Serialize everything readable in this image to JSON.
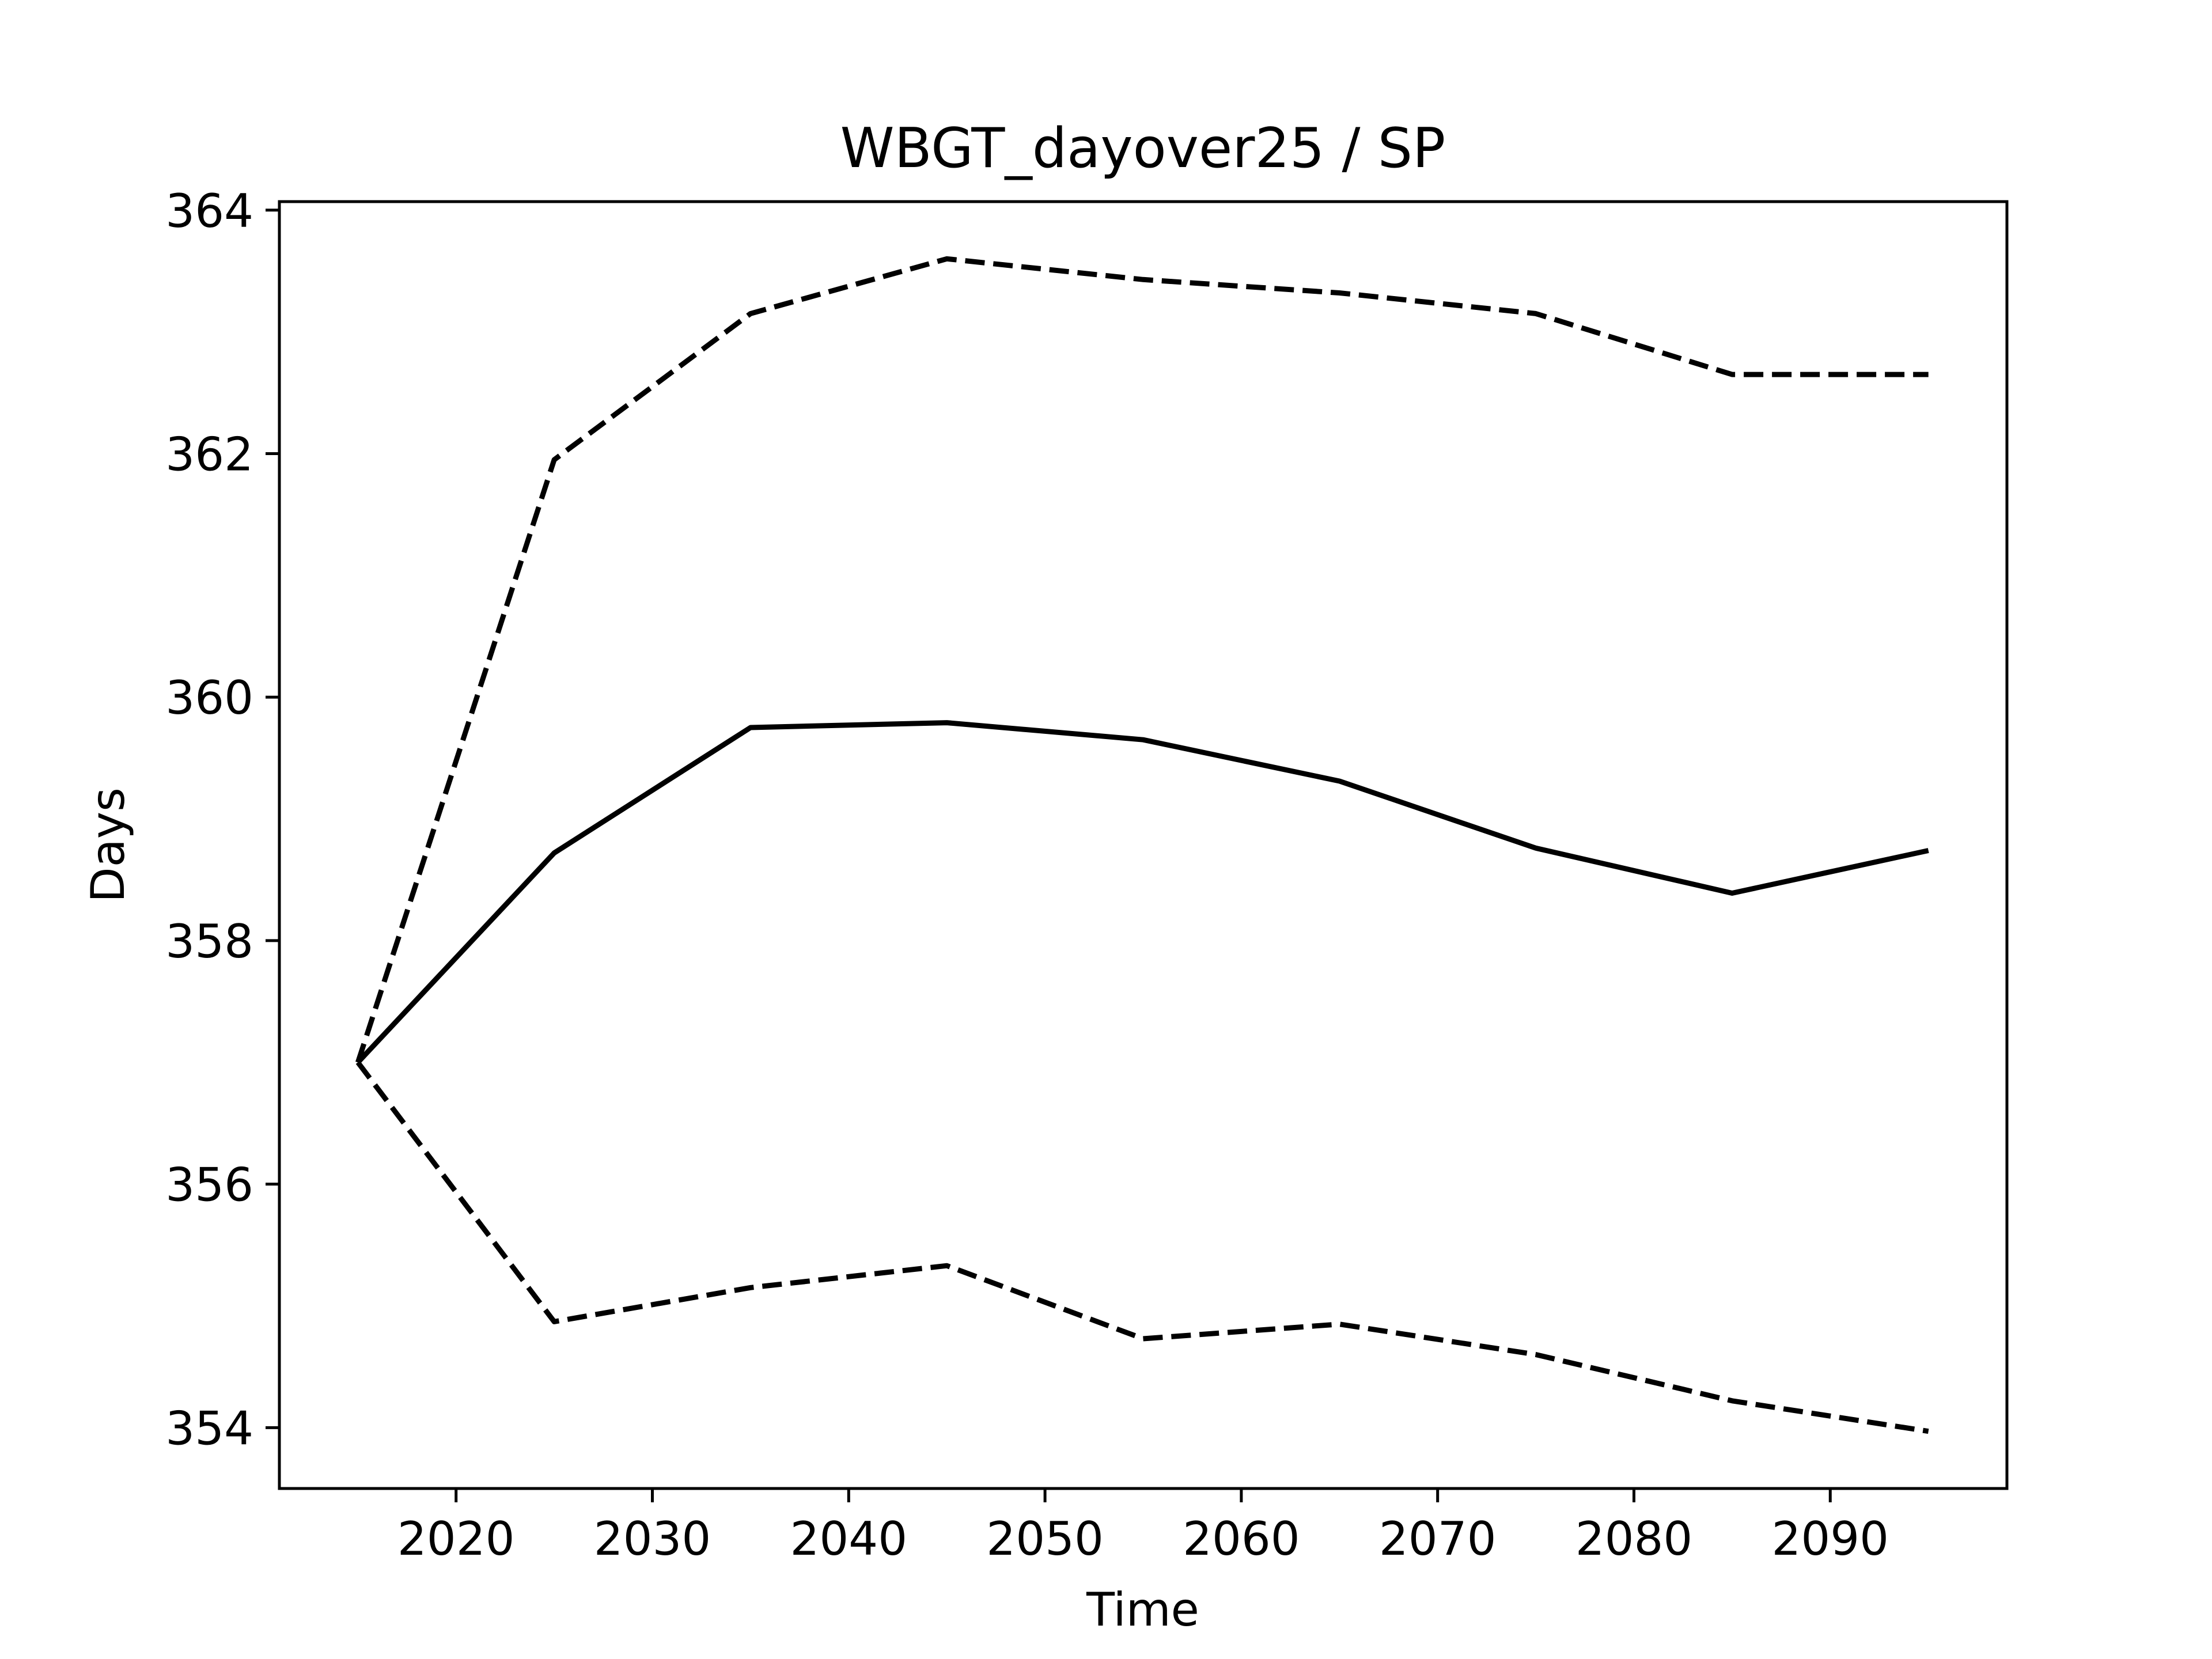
{
  "chart_data": {
    "type": "line",
    "title": "WBGT_dayover25 / SP",
    "xlabel": "Time",
    "ylabel": "Days",
    "xlim": [
      2011,
      2099
    ],
    "ylim": [
      353.5,
      364.07
    ],
    "xticks": [
      2020,
      2030,
      2040,
      2050,
      2060,
      2070,
      2080,
      2090
    ],
    "yticks": [
      354,
      356,
      358,
      360,
      362,
      364
    ],
    "grid": false,
    "legend": "none",
    "x": [
      2015,
      2025,
      2035,
      2045,
      2055,
      2065,
      2075,
      2085,
      2095
    ],
    "series": [
      {
        "style": "solid",
        "color": "#000000",
        "values": [
          357.0,
          358.72,
          359.75,
          359.79,
          359.65,
          359.31,
          358.76,
          358.39,
          358.74
        ]
      },
      {
        "style": "dashed",
        "color": "#000000",
        "values": [
          357.0,
          361.95,
          363.15,
          363.6,
          363.43,
          363.32,
          363.15,
          362.65,
          362.65
        ]
      },
      {
        "style": "dashed",
        "color": "#000000",
        "values": [
          357.0,
          354.87,
          355.15,
          355.33,
          354.73,
          354.85,
          354.6,
          354.22,
          353.97
        ]
      }
    ]
  }
}
